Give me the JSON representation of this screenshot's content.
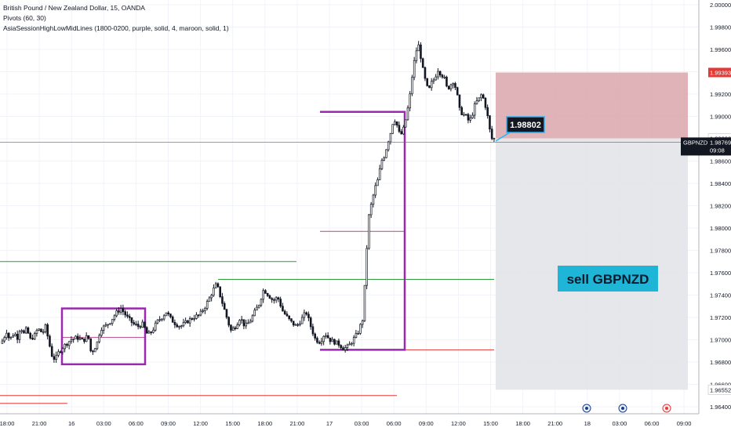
{
  "legend": {
    "symbol_line": "British Pound / New Zealand Dollar, 15, OANDA",
    "indicator_1": "Pivots (60, 30)",
    "indicator_2": "AsiaSessionHighLowMidLines (1800-0200, purple, solid, 4, maroon, solid, 1)"
  },
  "colors": {
    "candle": "#131722",
    "purple": "#9c27b0",
    "green": "#2e9e3a",
    "red": "#e53935",
    "stop_zone": "#d9a6aa",
    "target_zone": "#e1e3e8",
    "badge_bg": "#131722",
    "badge_border": "#29b6f6",
    "sell_bg": "#1fb5d6",
    "price_tag_red": "#e53935",
    "price_tag_dark": "#131722"
  },
  "chart_data": {
    "type": "candlestick",
    "symbol": "GBPNZD",
    "timeframe": "15",
    "ylim": [
      1.963,
      2.001
    ],
    "y_ticks": [
      "2.00000",
      "1.99800",
      "1.99600",
      "1.99400",
      "1.99200",
      "1.99000",
      "1.98800",
      "1.98600",
      "1.98400",
      "1.98200",
      "1.98000",
      "1.97800",
      "1.97600",
      "1.97400",
      "1.97200",
      "1.97000",
      "1.96800",
      "1.96600",
      "1.96400"
    ],
    "x_ticks": [
      "18:00",
      "21:00",
      "16",
      "03:00",
      "06:00",
      "09:00",
      "12:00",
      "15:00",
      "18:00",
      "21:00",
      "17",
      "03:00",
      "06:00",
      "09:00",
      "12:00",
      "15:00",
      "18:00",
      "21:00",
      "18",
      "03:00",
      "06:00",
      "09:00"
    ],
    "path_points": [
      [
        0,
        1.9695
      ],
      [
        6,
        1.97
      ],
      [
        10,
        1.9708
      ],
      [
        14,
        1.97
      ],
      [
        20,
        1.9706
      ],
      [
        24,
        1.9702
      ],
      [
        28,
        1.9712
      ],
      [
        32,
        1.9705
      ],
      [
        36,
        1.971
      ],
      [
        40,
        1.97
      ],
      [
        46,
        1.9704
      ],
      [
        50,
        1.971
      ],
      [
        56,
        1.9706
      ],
      [
        60,
        1.9712
      ],
      [
        64,
        1.9698
      ],
      [
        68,
        1.9686
      ],
      [
        72,
        1.9682
      ],
      [
        76,
        1.9688
      ],
      [
        80,
        1.9692
      ],
      [
        86,
        1.9696
      ],
      [
        92,
        1.97
      ],
      [
        100,
        1.9702
      ],
      [
        108,
        1.9699
      ],
      [
        114,
        1.9704
      ],
      [
        118,
        1.9688
      ],
      [
        122,
        1.9692
      ],
      [
        126,
        1.9698
      ],
      [
        130,
        1.971
      ],
      [
        136,
        1.9712
      ],
      [
        142,
        1.9716
      ],
      [
        150,
        1.9724
      ],
      [
        156,
        1.9728
      ],
      [
        164,
        1.972
      ],
      [
        172,
        1.9714
      ],
      [
        178,
        1.9712
      ],
      [
        184,
        1.9714
      ],
      [
        190,
        1.9704
      ],
      [
        196,
        1.9708
      ],
      [
        202,
        1.9716
      ],
      [
        208,
        1.972
      ],
      [
        214,
        1.9725
      ],
      [
        220,
        1.9718
      ],
      [
        226,
        1.9714
      ],
      [
        232,
        1.9712
      ],
      [
        240,
        1.9716
      ],
      [
        248,
        1.972
      ],
      [
        256,
        1.9722
      ],
      [
        262,
        1.9728
      ],
      [
        268,
        1.9736
      ],
      [
        274,
        1.9745
      ],
      [
        278,
        1.975
      ],
      [
        284,
        1.9736
      ],
      [
        290,
        1.9722
      ],
      [
        296,
        1.9708
      ],
      [
        302,
        1.9712
      ],
      [
        308,
        1.972
      ],
      [
        314,
        1.9712
      ],
      [
        320,
        1.9716
      ],
      [
        326,
        1.9724
      ],
      [
        332,
        1.9732
      ],
      [
        338,
        1.9745
      ],
      [
        344,
        1.974
      ],
      [
        350,
        1.9735
      ],
      [
        356,
        1.9738
      ],
      [
        362,
        1.9726
      ],
      [
        368,
        1.972
      ],
      [
        374,
        1.9715
      ],
      [
        380,
        1.9712
      ],
      [
        386,
        1.9718
      ],
      [
        392,
        1.9725
      ],
      [
        398,
        1.9712
      ],
      [
        404,
        1.97
      ],
      [
        410,
        1.9698
      ],
      [
        416,
        1.9706
      ],
      [
        422,
        1.97
      ],
      [
        428,
        1.9698
      ],
      [
        434,
        1.9696
      ],
      [
        440,
        1.9692
      ],
      [
        446,
        1.9694
      ],
      [
        452,
        1.97
      ],
      [
        458,
        1.9706
      ],
      [
        464,
        1.9718
      ],
      [
        468,
        1.976
      ],
      [
        470,
        1.979
      ],
      [
        472,
        1.981
      ],
      [
        476,
        1.9824
      ],
      [
        480,
        1.9836
      ],
      [
        484,
        1.9844
      ],
      [
        488,
        1.986
      ],
      [
        492,
        1.9865
      ],
      [
        496,
        1.9876
      ],
      [
        500,
        1.9886
      ],
      [
        504,
        1.9899
      ],
      [
        508,
        1.9892
      ],
      [
        512,
        1.9882
      ],
      [
        516,
        1.9888
      ],
      [
        520,
        1.99
      ],
      [
        524,
        1.9916
      ],
      [
        528,
        1.994
      ],
      [
        532,
        1.9958
      ],
      [
        536,
        1.9964
      ],
      [
        540,
        1.9945
      ],
      [
        544,
        1.9932
      ],
      [
        548,
        1.9922
      ],
      [
        552,
        1.993
      ],
      [
        556,
        1.9934
      ],
      [
        560,
        1.9942
      ],
      [
        564,
        1.9938
      ],
      [
        568,
        1.9935
      ],
      [
        572,
        1.9924
      ],
      [
        576,
        1.9928
      ],
      [
        580,
        1.9932
      ],
      [
        584,
        1.9922
      ],
      [
        588,
        1.9905
      ],
      [
        592,
        1.9902
      ],
      [
        596,
        1.99
      ],
      [
        600,
        1.9895
      ],
      [
        604,
        1.9902
      ],
      [
        608,
        1.9912
      ],
      [
        612,
        1.9915
      ],
      [
        616,
        1.992
      ],
      [
        620,
        1.9912
      ],
      [
        624,
        1.9898
      ],
      [
        628,
        1.988
      ]
    ],
    "pivot_lines": [
      {
        "color": "green",
        "price": 1.977,
        "x_from": 0,
        "x_to": 378
      },
      {
        "color": "green",
        "price": 1.9754,
        "x_from": 278,
        "x_to": 630
      },
      {
        "color": "red",
        "price": 1.9643,
        "x_from": 0,
        "x_to": 86
      },
      {
        "color": "red",
        "price": 1.965,
        "x_from": 0,
        "x_to": 506
      },
      {
        "color": "red",
        "price": 1.9691,
        "x_from": 506,
        "x_to": 630
      }
    ],
    "asia_boxes": [
      {
        "x_from": 79,
        "x_to": 185,
        "high": 1.9728,
        "low": 1.9678,
        "mid": 1.9702
      },
      {
        "x_from": 408,
        "x_to": 516,
        "high": 1.9904,
        "low": 1.9691,
        "mid": 1.9797
      }
    ],
    "position": {
      "side": "short",
      "entry": 1.98803,
      "stop": 1.99393,
      "target": 1.96552,
      "x_from": 632,
      "x_to": 877
    },
    "current_price": 1.98769,
    "price_labels": {
      "stop": "1.99393",
      "entry": "1.98803",
      "current_symbol": "GBPNZD",
      "current": "1.98769",
      "countdown": "09:08",
      "target": "1.96552"
    },
    "badge": {
      "text": "1.98802"
    },
    "annotation": {
      "text": "sell GBPNZD"
    }
  }
}
